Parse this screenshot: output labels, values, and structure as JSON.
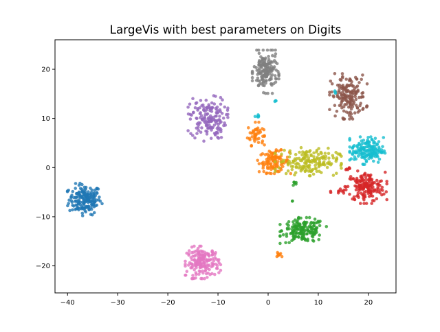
{
  "chart_data": {
    "type": "scatter",
    "title": "LargeVis with best parameters on Digits",
    "xlabel": "",
    "ylabel": "",
    "xlim": [
      -42.5,
      25.5
    ],
    "ylim": [
      -25.5,
      26.0
    ],
    "xticks": [
      -40,
      -30,
      -20,
      -10,
      0,
      10,
      20
    ],
    "yticks": [
      -20,
      -10,
      0,
      10,
      20
    ],
    "grid": false,
    "clusters": [
      {
        "color": "#1f77b4",
        "cx": -36.5,
        "cy": -6.5,
        "sx": 1.6,
        "sy": 1.5,
        "n": 180
      },
      {
        "color": "#ff7f0e",
        "cx": -2.5,
        "cy": 6.8,
        "sx": 0.8,
        "sy": 1.1,
        "n": 45
      },
      {
        "color": "#ff7f0e",
        "cx": 1.2,
        "cy": 1.2,
        "sx": 1.5,
        "sy": 1.1,
        "n": 110
      },
      {
        "color": "#2ca02c",
        "cx": 7.0,
        "cy": -12.8,
        "sx": 2.1,
        "sy": 1.2,
        "n": 170
      },
      {
        "color": "#2ca02c",
        "cx": 5.3,
        "cy": -3.2,
        "sx": 0.2,
        "sy": 0.3,
        "n": 6
      },
      {
        "color": "#2ca02c",
        "cx": 4.8,
        "cy": -6.8,
        "sx": 0.1,
        "sy": 0.1,
        "n": 2
      },
      {
        "color": "#d62728",
        "cx": 19.5,
        "cy": -4.0,
        "sx": 1.9,
        "sy": 1.5,
        "n": 170
      },
      {
        "color": "#d62728",
        "cx": 14.0,
        "cy": -4.9,
        "sx": 0.7,
        "sy": 0.3,
        "n": 10
      },
      {
        "color": "#d62728",
        "cx": 15.8,
        "cy": -0.2,
        "sx": 0.4,
        "sy": 0.2,
        "n": 6
      },
      {
        "color": "#9467bd",
        "cx": -12.0,
        "cy": 10.0,
        "sx": 1.8,
        "sy": 2.1,
        "n": 160
      },
      {
        "color": "#8c564b",
        "cx": 16.0,
        "cy": 14.5,
        "sx": 1.7,
        "sy": 2.1,
        "n": 170
      },
      {
        "color": "#e377c2",
        "cx": -13.0,
        "cy": -19.3,
        "sx": 1.6,
        "sy": 1.5,
        "n": 175
      },
      {
        "color": "#7f7f7f",
        "cx": -0.5,
        "cy": 19.5,
        "sx": 1.2,
        "sy": 2.0,
        "n": 170
      },
      {
        "color": "#bcbd22",
        "cx": 8.0,
        "cy": 1.2,
        "sx": 3.0,
        "sy": 1.3,
        "n": 175
      },
      {
        "color": "#17becf",
        "cx": 19.8,
        "cy": 3.5,
        "sx": 1.6,
        "sy": 1.3,
        "n": 160
      },
      {
        "color": "#17becf",
        "cx": -2.2,
        "cy": 10.5,
        "sx": 0.4,
        "sy": 0.3,
        "n": 6
      },
      {
        "color": "#17becf",
        "cx": 13.2,
        "cy": 15.5,
        "sx": 0.2,
        "sy": 0.2,
        "n": 3
      },
      {
        "color": "#17becf",
        "cx": 1.5,
        "cy": 13.6,
        "sx": 0.2,
        "sy": 0.2,
        "n": 3
      },
      {
        "color": "#ff7f0e",
        "cx": 2.2,
        "cy": -17.6,
        "sx": 0.4,
        "sy": 0.3,
        "n": 8
      }
    ]
  }
}
